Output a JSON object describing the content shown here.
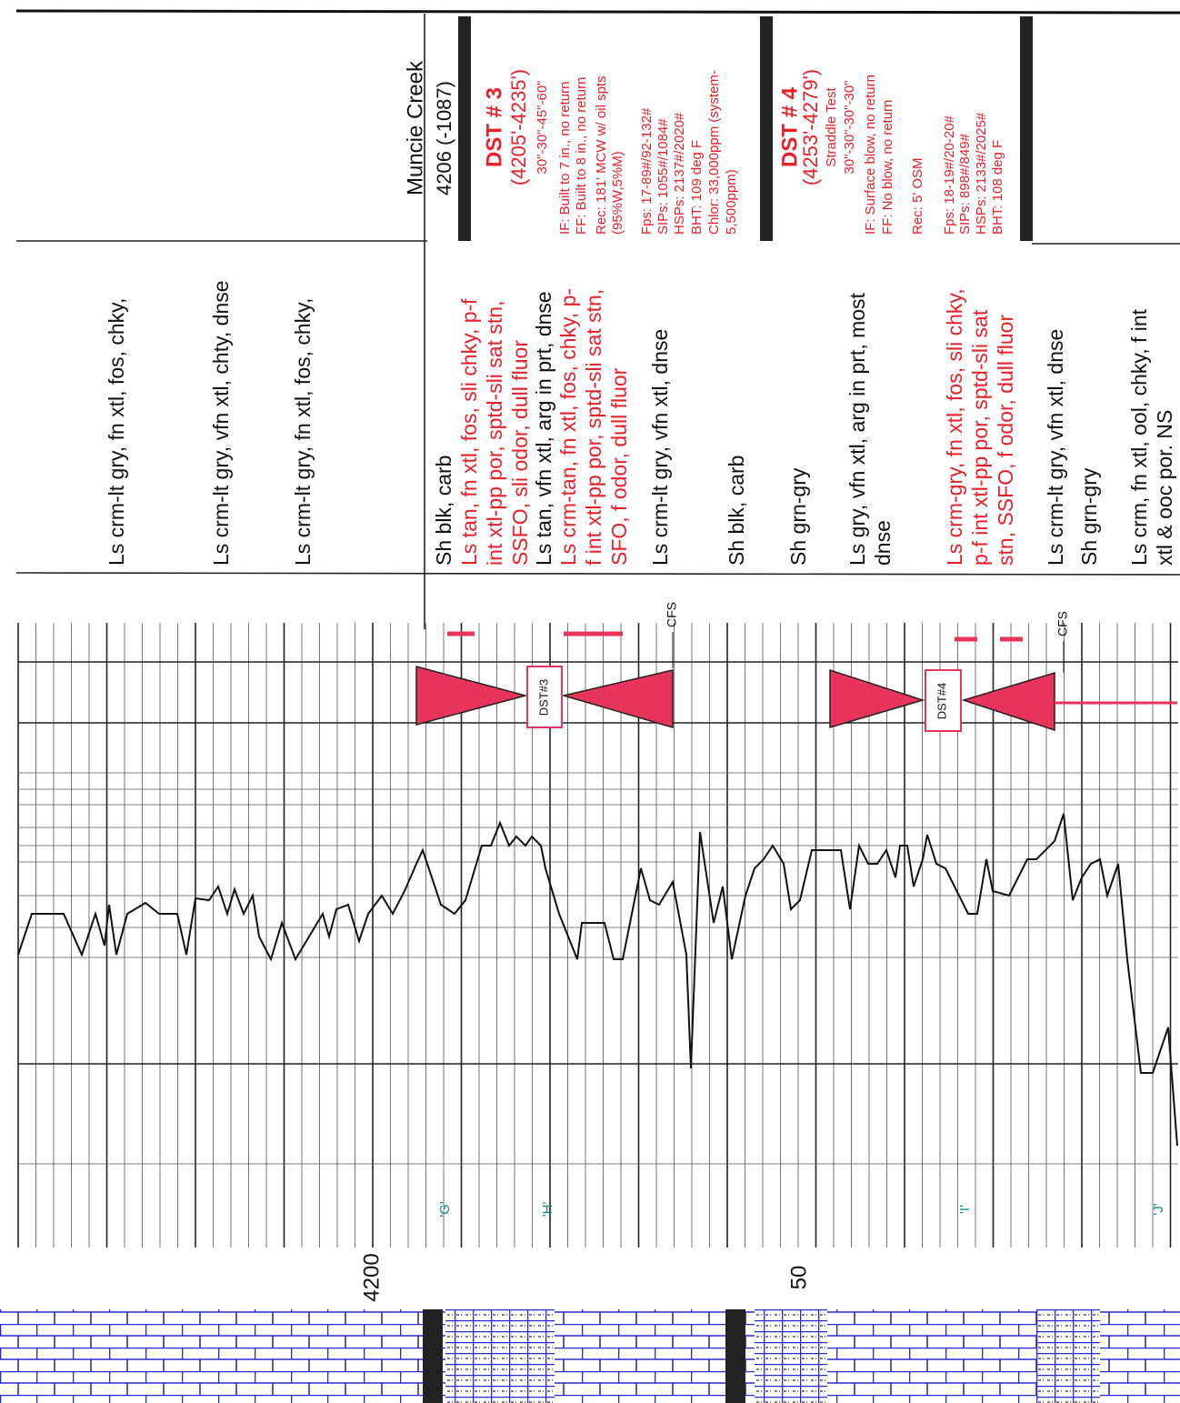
{
  "formation": {
    "name": "Muncie Creek",
    "depth": "4206 (-1087)"
  },
  "dst_tests": [
    {
      "title": "DST # 3",
      "interval": "(4205'-4235')",
      "header_lines": [
        "30\"-30\"-45\"-60\""
      ],
      "detail_lines": [
        "IF: Built to 7 in., no return",
        "FF: Built to 8 in., no return",
        "Rec: 181' MCW w/ oil spts",
        "(95%W,5%M)",
        "Fps: 17-89#/92-132#",
        "SIPs: 1055#/1084#",
        "HSPs: 2137#/2020#",
        "BHT: 109 deg F",
        "Chlor: 33,000ppm (system-",
        "5,500ppm)"
      ]
    },
    {
      "title": "DST # 4",
      "interval": "(4253'-4279')",
      "header_lines": [
        "Straddle Test",
        "30\"-30\"-30\"-30\""
      ],
      "detail_lines": [
        "IF: Surface blow, no return",
        "FF: No blow, no return",
        "Rec: 5' OSM",
        "Fps: 18-19#/20-20#",
        "SIPs: 898#/849#",
        "HSPs: 2133#/2025#",
        "BHT: 108 deg F"
      ]
    }
  ],
  "descriptions": [
    {
      "lines": [
        "Ls crm-lt gry, fn xtl, fos, chky,"
      ],
      "show": false
    },
    {
      "lines": [
        "Ls crm-lt gry, vfn xtl, chty, dnse"
      ],
      "show": false
    },
    {
      "lines": [
        "Ls crm-lt gry, fn xtl, fos, chky,"
      ],
      "show": false
    },
    {
      "lines": [
        "Sh blk, carb"
      ],
      "show": false
    },
    {
      "lines": [
        "Ls tan, fn xtl, fos, sli chky, p-f",
        "int xtl-pp por, sptd-sli sat stn,",
        "SSFO, sli odor, dull fluor"
      ],
      "show": true
    },
    {
      "lines": [
        "Ls tan, vfn xtl, arg in prt, dnse"
      ],
      "show": false
    },
    {
      "lines": [
        "Ls crm-tan, fn xtl, fos, chky, p-",
        "f int xtl-pp por, sptd-sli sat stn,",
        "SFO, f odor, dull fluor"
      ],
      "show": true
    },
    {
      "lines": [
        "Ls crm-lt gry, vfn xtl, dnse"
      ],
      "show": false
    },
    {
      "lines": [
        "Sh blk, carb"
      ],
      "show": false
    },
    {
      "lines": [
        "Sh grn-gry"
      ],
      "show": false
    },
    {
      "lines": [
        "Ls gry, vfn xtl, arg in prt, most",
        "dnse"
      ],
      "show": false
    },
    {
      "lines": [
        "Ls crm-gry, fn xtl, fos, sli chky,",
        "p-f int xtl-pp por, sptd-sli sat",
        "stn, SSFO, f odor, dull fluor"
      ],
      "show": true
    },
    {
      "lines": [
        "Ls crm-lt gry, vfn xtl, dnse"
      ],
      "show": false
    },
    {
      "lines": [
        "Sh grn-gry"
      ],
      "show": false
    },
    {
      "lines": [
        "Ls crm, fn xtl, ool, chky, f int",
        "xtl & ooc por. NS"
      ],
      "show": false
    }
  ],
  "depth_labels": [
    "4200",
    "50"
  ],
  "markers": [
    "'G'",
    "'H'",
    "'I'",
    "'J'"
  ],
  "cfs_labels": [
    "CFS",
    "CFS"
  ],
  "dst_labels": [
    "DST#3",
    "DST#4"
  ]
}
